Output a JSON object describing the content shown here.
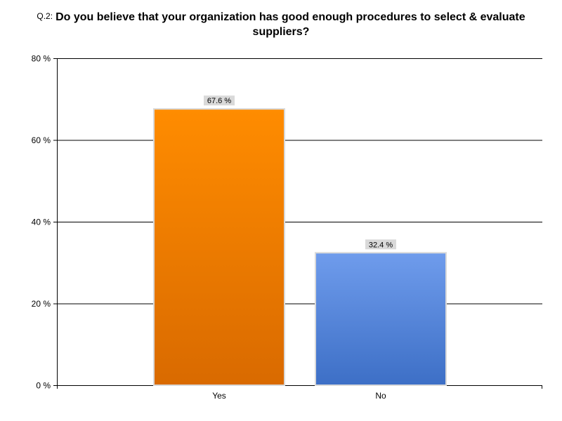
{
  "title": {
    "number": "Q.2:",
    "line1": "Do you believe that your organization has good enough procedures to select & evaluate",
    "line2": "suppliers?"
  },
  "colors": {
    "yes_top": "#ff8c00",
    "yes_bottom": "#d96a00",
    "no_top": "#6f9cec",
    "no_bottom": "#3d6fc6",
    "bar_border": "#d9d9d9",
    "data_label_bg": "#d9d9d9"
  },
  "chart_data": {
    "type": "bar",
    "categories": [
      "Yes",
      "No"
    ],
    "values": [
      67.6,
      32.4
    ],
    "data_labels": [
      "67.6 %",
      "32.4 %"
    ],
    "title": "Q.2: Do you believe that your organization has good enough procedures to select & evaluate suppliers?",
    "xlabel": "",
    "ylabel": "",
    "ylim": [
      0,
      80
    ],
    "yticks": [
      0,
      20,
      40,
      60,
      80
    ],
    "ytick_labels": [
      "0 %",
      "20 %",
      "40 %",
      "60 %",
      "80 %"
    ],
    "grid": true,
    "legend": "none"
  }
}
